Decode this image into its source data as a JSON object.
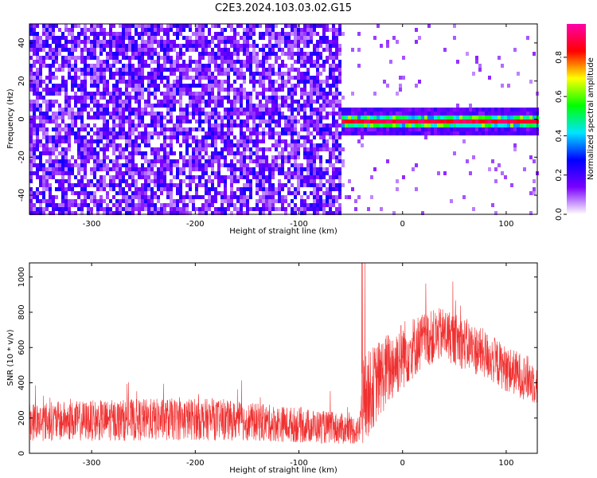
{
  "title": "C2E3.2024.103.03.02.G15",
  "chart_data": [
    {
      "type": "heatmap",
      "xlabel": "Height of straight line (km)",
      "ylabel": "Frequency (Hz)",
      "xlim": [
        -360,
        130
      ],
      "ylim": [
        -50,
        50
      ],
      "xticks": [
        -300,
        -200,
        -100,
        0,
        100
      ],
      "yticks": [
        -40,
        -20,
        0,
        20,
        40
      ],
      "colorbar": {
        "label": "Normalized spectral amplitude",
        "range": [
          0,
          0.97
        ],
        "ticks": [
          0.0,
          0.2,
          0.4,
          0.6,
          0.8
        ],
        "tick_labels": [
          "0.0",
          "0.2",
          "0.4",
          "0.6",
          "0.8"
        ],
        "colormap": [
          "#ffffff",
          "#7a00ff",
          "#0000ff",
          "#00e5ff",
          "#00ff00",
          "#ffff00",
          "#ff0000",
          "#ff00aa"
        ]
      },
      "regions": [
        {
          "name": "noise",
          "x_range": [
            -360,
            -62
          ],
          "freq_range": [
            -50,
            50
          ],
          "amplitude": "low (0.05-0.25, violet/white speckle)"
        },
        {
          "name": "carrier",
          "x_range": [
            -62,
            130
          ],
          "freq_center": 0,
          "freq_halfwidth": 3,
          "amplitude": "high (0.8-0.97, red core with green/cyan/blue edges)"
        }
      ]
    },
    {
      "type": "line",
      "xlabel": "Height of straight line (km)",
      "ylabel": "SNR (10 * v/v)",
      "xlim": [
        -360,
        130
      ],
      "ylim": [
        0,
        1080
      ],
      "xticks": [
        -300,
        -200,
        -100,
        0,
        100
      ],
      "yticks": [
        0,
        200,
        400,
        600,
        800,
        1000
      ],
      "series": [
        {
          "color": "#f03030",
          "envelope_x": [
            -360,
            -300,
            -250,
            -200,
            -150,
            -100,
            -60,
            -42,
            -38,
            -20,
            0,
            20,
            40,
            60,
            80,
            100,
            130
          ],
          "envelope_mean": [
            180,
            185,
            190,
            195,
            180,
            160,
            140,
            130,
            300,
            440,
            560,
            640,
            680,
            620,
            560,
            480,
            400
          ],
          "envelope_spread": [
            110,
            115,
            120,
            120,
            110,
            100,
            90,
            80,
            250,
            220,
            200,
            160,
            150,
            150,
            140,
            130,
            130
          ],
          "peak_max": 1080
        }
      ]
    }
  ]
}
